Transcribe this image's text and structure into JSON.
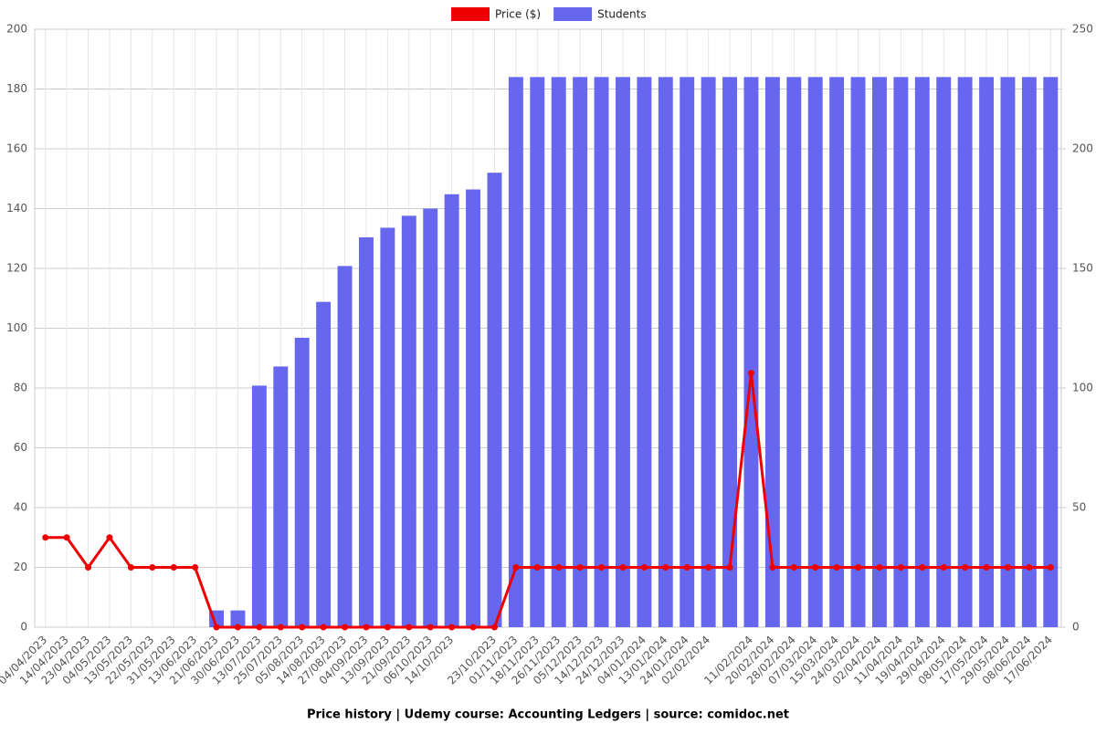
{
  "chart_data": {
    "type": "bar_line",
    "title": "Price history | Udemy course: Accounting Ledgers | source: comidoc.net",
    "categories": [
      "04/04/2023",
      "14/04/2023",
      "23/04/2023",
      "04/05/2023",
      "13/05/2023",
      "22/05/2023",
      "31/05/2023",
      "13/06/2023",
      "21/06/2023",
      "30/06/2023",
      "13/07/2023",
      "25/07/2023",
      "05/08/2023",
      "14/08/2023",
      "27/08/2023",
      "04/09/2023",
      "13/09/2023",
      "21/09/2023",
      "06/10/2023",
      "14/10/2023",
      null,
      "23/10/2023",
      "01/11/2023",
      "18/11/2023",
      "26/11/2023",
      "05/12/2023",
      "14/12/2023",
      "24/12/2023",
      "04/01/2024",
      "13/01/2024",
      "24/01/2024",
      "02/02/2024",
      null,
      "11/02/2024",
      "20/02/2024",
      "28/02/2024",
      "07/03/2024",
      "15/03/2024",
      "24/03/2024",
      "02/04/2024",
      "11/04/2024",
      "19/04/2024",
      "29/04/2024",
      "08/05/2024",
      "17/05/2024",
      "29/05/2024",
      "08/06/2024",
      "17/06/2024"
    ],
    "series": [
      {
        "name": "Price ($)",
        "color": "#ee0000",
        "kind": "line",
        "axis": "y",
        "values": [
          30,
          30,
          20,
          30,
          20,
          20,
          20,
          20,
          0,
          0,
          0,
          0,
          0,
          0,
          0,
          0,
          0,
          0,
          0,
          0,
          0,
          0,
          20,
          20,
          20,
          20,
          20,
          20,
          20,
          20,
          20,
          20,
          20,
          85,
          20,
          20,
          20,
          20,
          20,
          20,
          20,
          20,
          20,
          20,
          20,
          20,
          20,
          20
        ]
      },
      {
        "name": "Students",
        "color": "#6666ee",
        "kind": "bar",
        "axis": "y2",
        "values": [
          null,
          null,
          null,
          null,
          null,
          null,
          null,
          null,
          7,
          7,
          101,
          109,
          121,
          136,
          151,
          163,
          167,
          172,
          175,
          181,
          183,
          190,
          230,
          230,
          230,
          230,
          230,
          230,
          230,
          230,
          230,
          230,
          230,
          230,
          230,
          230,
          230,
          230,
          230,
          230,
          230,
          230,
          230,
          230,
          230,
          230,
          230,
          230
        ]
      }
    ],
    "ylim": [
      0,
      200
    ],
    "yticks": [
      0,
      20,
      40,
      60,
      80,
      100,
      120,
      140,
      160,
      180,
      200
    ],
    "y2lim": [
      0,
      250
    ],
    "y2ticks": [
      0,
      50,
      100,
      150,
      200,
      250
    ],
    "grid": true,
    "legend": "top"
  }
}
